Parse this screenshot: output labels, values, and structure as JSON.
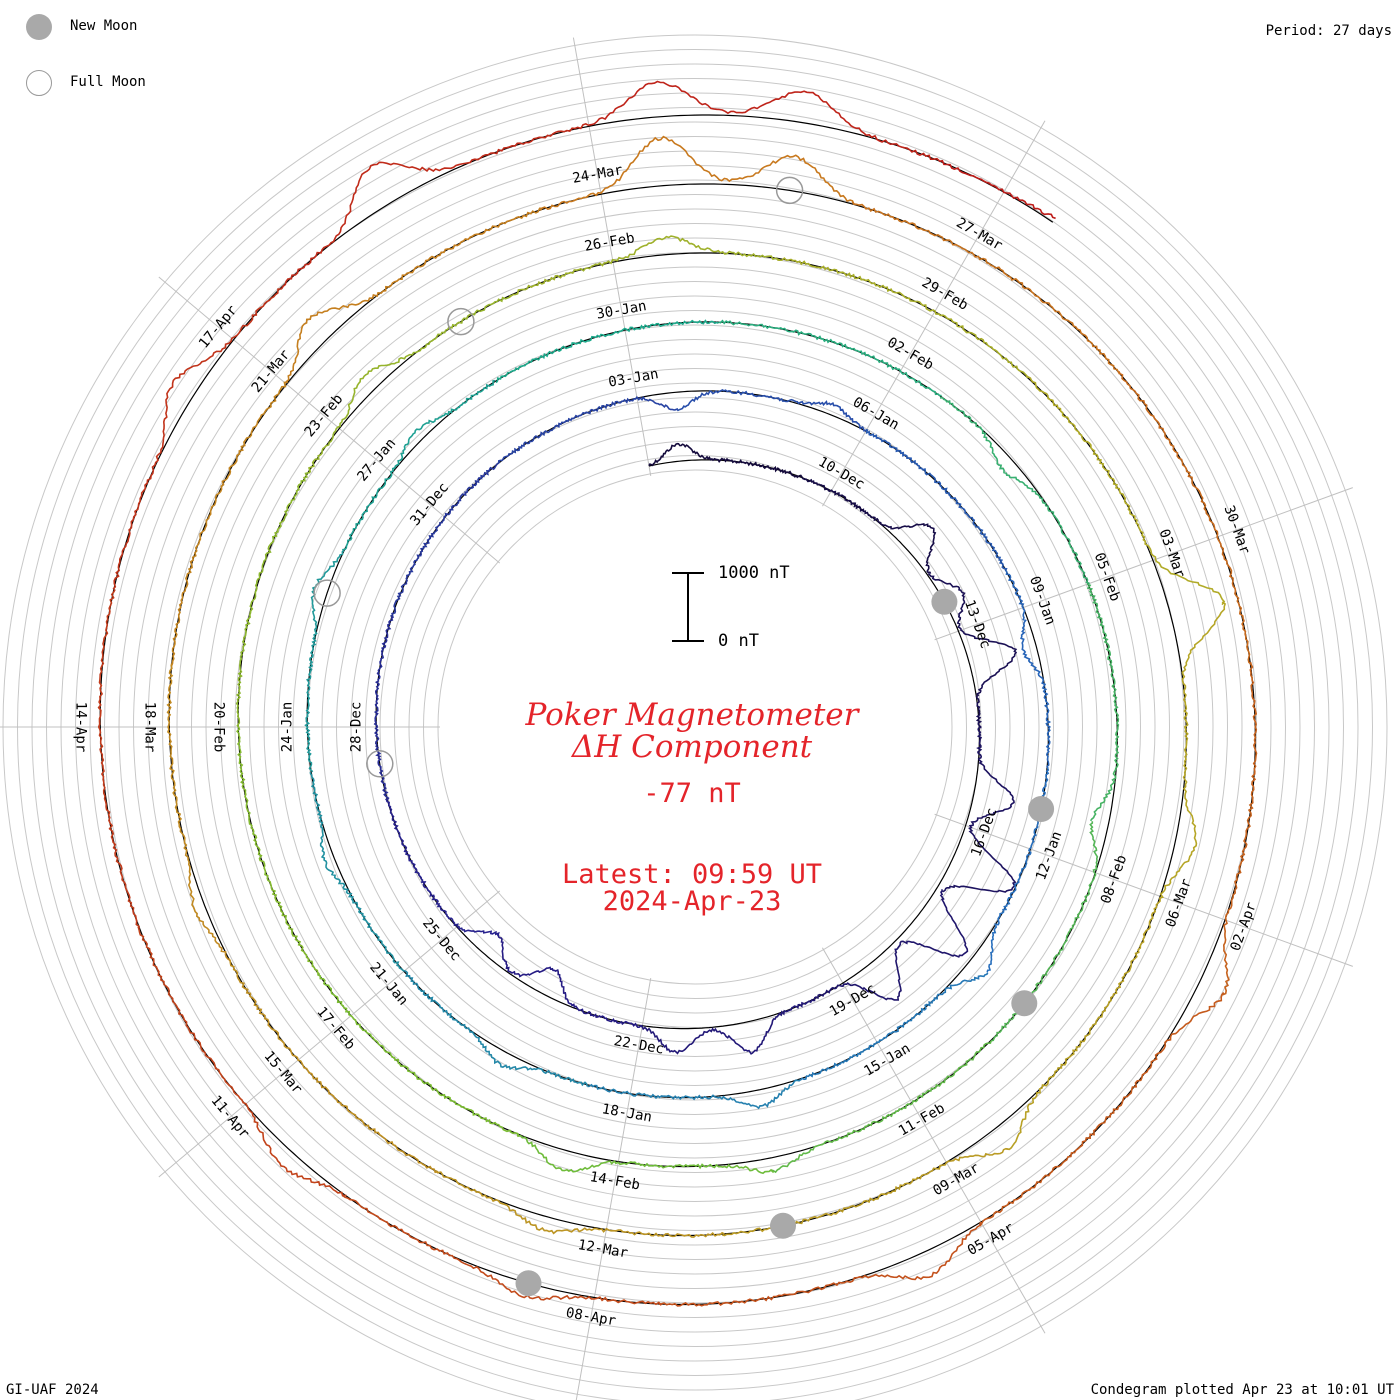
{
  "legend": {
    "new_moon_label": "New Moon",
    "full_moon_label": "Full Moon",
    "new_moon_color": "#a9a9a9",
    "full_moon_color": "#999999"
  },
  "period_label": "Period: 27 days",
  "footer_left": "GI-UAF 2024",
  "footer_right": "Condegram plotted Apr 23 at 10:01 UT",
  "title_line1": "Poker Magnetometer",
  "title_line2": "ΔH Component",
  "current_value": "-77 nT",
  "latest_time": "Latest: 09:59 UT",
  "latest_date": "2024-Apr-23",
  "scale_bar": {
    "top_label": "1000 nT",
    "bottom_label": "0 nT"
  },
  "title_color": "#e4242a",
  "chart_data": {
    "type": "condegram-spiral",
    "period_days": 27,
    "start_date": "2023-12-07",
    "end_date": "2024-04-23",
    "units": "nT",
    "date_labels": [
      "10-Dec",
      "13-Dec",
      "16-Dec",
      "19-Dec",
      "22-Dec",
      "25-Dec",
      "28-Dec",
      "31-Dec",
      "03-Jan",
      "06-Jan",
      "09-Jan",
      "12-Jan",
      "15-Jan",
      "18-Jan",
      "21-Jan",
      "24-Jan",
      "27-Jan",
      "30-Jan",
      "02-Feb",
      "05-Feb",
      "08-Feb",
      "11-Feb",
      "14-Feb",
      "17-Feb",
      "20-Feb",
      "23-Feb",
      "26-Feb",
      "29-Feb",
      "03-Mar",
      "06-Mar",
      "09-Mar",
      "12-Mar",
      "15-Mar",
      "18-Mar",
      "21-Mar",
      "24-Mar",
      "27-Mar",
      "30-Mar",
      "02-Apr",
      "05-Apr",
      "08-Apr",
      "11-Apr",
      "14-Apr",
      "17-Apr"
    ],
    "new_moons": [
      "2023-12-12",
      "2024-01-11",
      "2024-02-09",
      "2024-03-10",
      "2024-04-08"
    ],
    "full_moons": [
      "2023-12-27",
      "2024-01-25",
      "2024-02-24",
      "2024-03-25"
    ],
    "disturbances_nT": [
      {
        "date": "2023-12-07",
        "value": -250
      },
      {
        "date": "2023-12-11",
        "value": -500
      },
      {
        "date": "2023-12-12",
        "value": -300
      },
      {
        "date": "2023-12-13",
        "value": -700
      },
      {
        "date": "2023-12-15",
        "value": -600
      },
      {
        "date": "2023-12-16",
        "value": -1000
      },
      {
        "date": "2023-12-17",
        "value": -900
      },
      {
        "date": "2023-12-18",
        "value": -650
      },
      {
        "date": "2023-12-20",
        "value": -450
      },
      {
        "date": "2023-12-21",
        "value": -350
      },
      {
        "date": "2023-12-23",
        "value": 400
      },
      {
        "date": "2023-12-24",
        "value": 350
      },
      {
        "date": "2024-01-03",
        "value": 250
      },
      {
        "date": "2024-01-05",
        "value": -150
      },
      {
        "date": "2024-01-09",
        "value": 200
      },
      {
        "date": "2024-01-13",
        "value": -300
      },
      {
        "date": "2024-01-16",
        "value": -250
      },
      {
        "date": "2024-01-19",
        "value": -200
      },
      {
        "date": "2024-01-22",
        "value": -150
      },
      {
        "date": "2024-01-25",
        "value": -200
      },
      {
        "date": "2024-01-27",
        "value": -150
      },
      {
        "date": "2024-02-03",
        "value": 200
      },
      {
        "date": "2024-02-07",
        "value": 250
      },
      {
        "date": "2024-02-12",
        "value": -200
      },
      {
        "date": "2024-02-14",
        "value": -300
      },
      {
        "date": "2024-02-23",
        "value": -250
      },
      {
        "date": "2024-02-26",
        "value": -250
      },
      {
        "date": "2024-03-03",
        "value": -800
      },
      {
        "date": "2024-03-05",
        "value": -300
      },
      {
        "date": "2024-03-08",
        "value": -350
      },
      {
        "date": "2024-03-12",
        "value": -200
      },
      {
        "date": "2024-03-16",
        "value": -150
      },
      {
        "date": "2024-03-21",
        "value": -400
      },
      {
        "date": "2024-03-24",
        "value": -700
      },
      {
        "date": "2024-03-25",
        "value": -500
      },
      {
        "date": "2024-04-02",
        "value": -400
      },
      {
        "date": "2024-04-05",
        "value": -350
      },
      {
        "date": "2024-04-08",
        "value": -200
      },
      {
        "date": "2024-04-10",
        "value": -250
      },
      {
        "date": "2024-04-16",
        "value": -350
      },
      {
        "date": "2024-04-18",
        "value": -600
      },
      {
        "date": "2024-04-20",
        "value": -500
      },
      {
        "date": "2024-04-21",
        "value": -450
      },
      {
        "date": "2024-04-23",
        "value": -77
      }
    ]
  }
}
